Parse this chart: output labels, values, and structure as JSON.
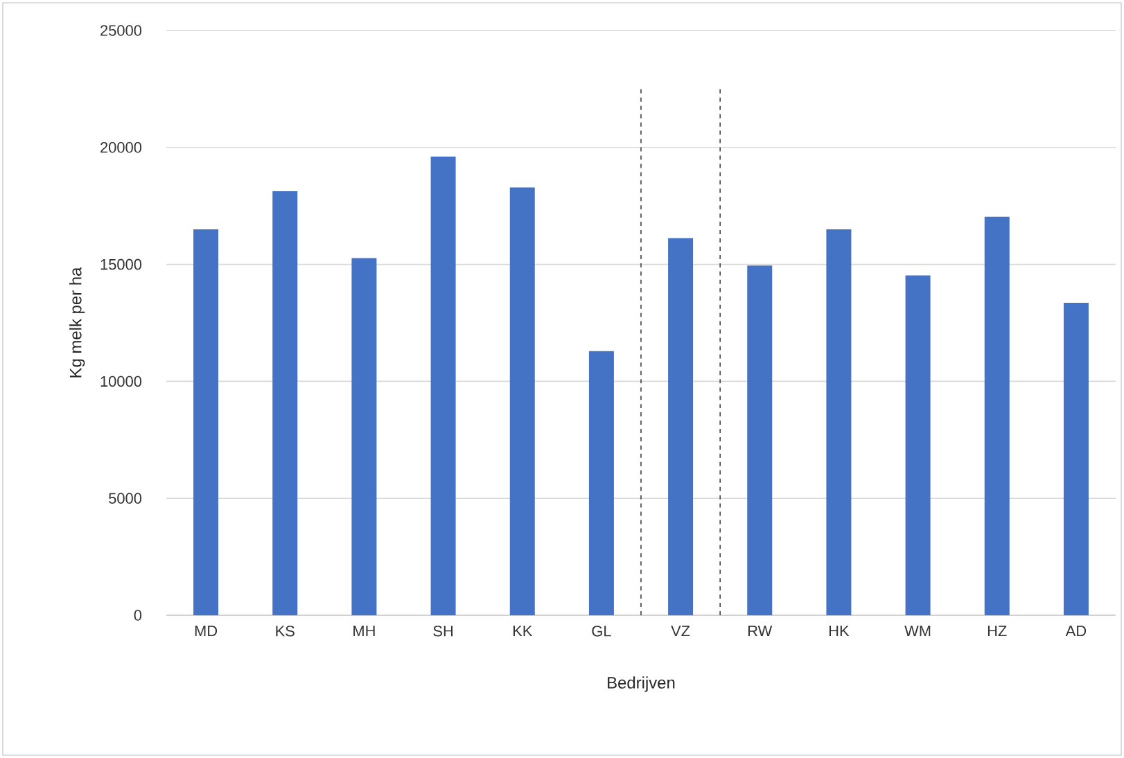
{
  "chart_data": {
    "type": "bar",
    "xlabel": "Bedrijven",
    "ylabel": "Kg melk per ha",
    "categories": [
      "MD",
      "KS",
      "MH",
      "SH",
      "KK",
      "GL",
      "VZ",
      "RW",
      "HK",
      "WM",
      "HZ",
      "AD"
    ],
    "values": [
      16500,
      18130,
      15270,
      19610,
      18290,
      11290,
      16120,
      14950,
      16500,
      14530,
      17040,
      13360
    ],
    "color": "#4472c4",
    "ylim": [
      0,
      25000
    ],
    "yticks": [
      0,
      5000,
      10000,
      15000,
      20000,
      25000
    ],
    "grid": "y"
  }
}
